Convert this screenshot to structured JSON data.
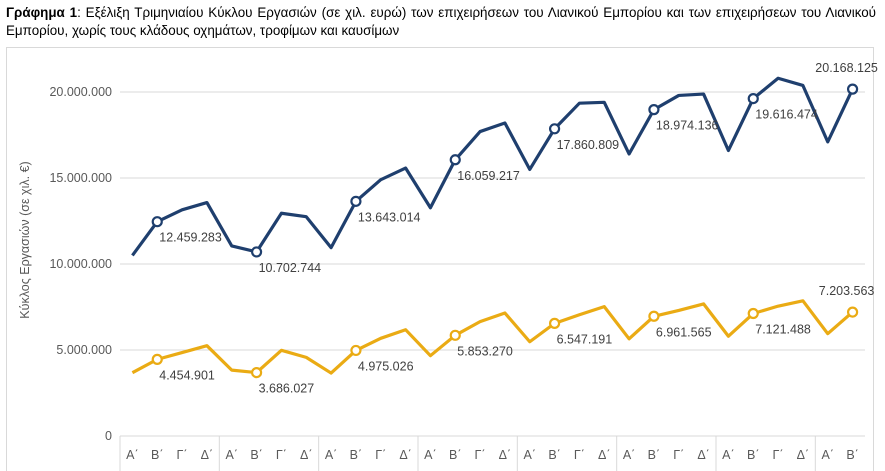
{
  "caption": {
    "prefix": "Γράφημα 1",
    "text": ": Εξέλιξη Τριμηνιαίου Κύκλου Εργασιών (σε χιλ. ευρώ) των επιχειρήσεων του Λιανικού Εμπορίου και των επιχειρήσεων του Λιανικού Εμπορίου, χωρίς τους κλάδους οχημάτων, τροφίμων και καυσίμων"
  },
  "colors": {
    "series1": "#1f3f6e",
    "series2": "#eaab14",
    "grid": "#d9d9d9",
    "text": "#595959"
  },
  "chart_data": {
    "type": "line",
    "ylabel": "Κύκλος Εργασιών (σε χιλ. €)",
    "ylim": [
      0,
      22000000
    ],
    "yticks": [
      0,
      5000000,
      10000000,
      15000000,
      20000000
    ],
    "ytick_labels": [
      "0",
      "5.000.000",
      "10.000.000",
      "15.000.000",
      "20.000.000"
    ],
    "categories": [
      "Α΄",
      "Β΄",
      "Γ΄",
      "Δ΄",
      "Α΄",
      "Β΄",
      "Γ΄",
      "Δ΄",
      "Α΄",
      "Β΄",
      "Γ΄",
      "Δ΄",
      "Α΄",
      "Β΄",
      "Γ΄",
      "Δ΄",
      "Α΄",
      "Β΄",
      "Γ΄",
      "Δ΄",
      "Α΄",
      "Β΄",
      "Γ΄",
      "Δ΄",
      "Α΄",
      "Β΄",
      "Γ΄",
      "Δ΄",
      "Α΄",
      "Β΄"
    ],
    "series": [
      {
        "values": [
          10500000,
          12459283,
          13150000,
          13570000,
          11050000,
          10702744,
          12950000,
          12750000,
          10950000,
          13643014,
          14900000,
          15580000,
          13270000,
          16059217,
          17700000,
          18200000,
          15500000,
          17860809,
          19350000,
          19400000,
          16400000,
          18974136,
          19800000,
          19880000,
          16600000,
          19616474,
          20800000,
          20380000,
          17100000,
          20168125
        ],
        "markers": [
          1,
          5,
          9,
          13,
          17,
          21,
          25,
          29
        ],
        "labels": [
          "12.459.283",
          "10.702.744",
          "13.643.014",
          "16.059.217",
          "17.860.809",
          "18.974.136",
          "19.616.474",
          "20.168.125"
        ]
      },
      {
        "values": [
          3680000,
          4454901,
          4850000,
          5250000,
          3830000,
          3686027,
          4980000,
          4570000,
          3660000,
          4975026,
          5680000,
          6180000,
          4670000,
          5853270,
          6650000,
          7150000,
          5480000,
          6547191,
          7050000,
          7520000,
          5650000,
          6961565,
          7300000,
          7680000,
          5800000,
          7121488,
          7550000,
          7860000,
          5950000,
          7203563
        ],
        "markers": [
          1,
          5,
          9,
          13,
          17,
          21,
          25,
          29
        ],
        "labels": [
          "4.454.901",
          "3.686.027",
          "4.975.026",
          "5.853.270",
          "6.547.191",
          "6.961.565",
          "7.121.488",
          "7.203.563"
        ]
      }
    ]
  }
}
